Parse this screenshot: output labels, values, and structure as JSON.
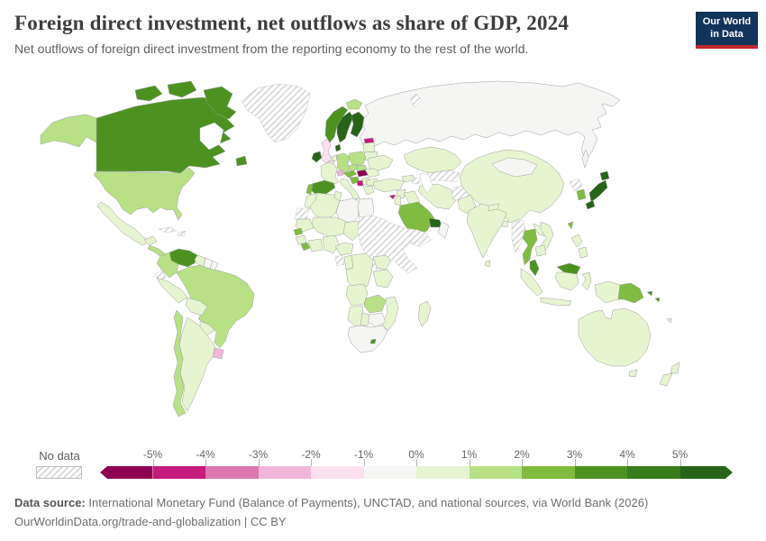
{
  "header": {
    "title": "Foreign direct investment, net outflows as share of GDP, 2024",
    "subtitle": "Net outflows of foreign direct investment from the reporting economy to the rest of the world.",
    "logo": {
      "line1": "Our World",
      "line2": "in Data"
    }
  },
  "legend": {
    "no_data_label": "No data",
    "ticks": [
      "-5%",
      "-4%",
      "-3%",
      "-2%",
      "-1%",
      "0%",
      "1%",
      "2%",
      "3%",
      "4%",
      "5%"
    ],
    "segments": [
      {
        "range": "< -5%",
        "color": "#8e0152"
      },
      {
        "range": "-5% to -4%",
        "color": "#c51b7d"
      },
      {
        "range": "-4% to -3%",
        "color": "#de77ae"
      },
      {
        "range": "-3% to -2%",
        "color": "#f1b6da"
      },
      {
        "range": "-2% to -1%",
        "color": "#fde0ef"
      },
      {
        "range": "-1% to 0%",
        "color": "#f5f5f3"
      },
      {
        "range": "0% to 1%",
        "color": "#e6f5d0"
      },
      {
        "range": "1% to 2%",
        "color": "#b8e186"
      },
      {
        "range": "2% to 3%",
        "color": "#7fbc41"
      },
      {
        "range": "3% to 4%",
        "color": "#4d9221"
      },
      {
        "range": "4% to 5%",
        "color": "#3a7d1c"
      },
      {
        "range": "> 5%",
        "color": "#276419"
      }
    ]
  },
  "footer": {
    "datasource_label": "Data source:",
    "datasource_text": " International Monetary Fund (Balance of Payments), UNCTAD, and national sources, via World Bank (2026)",
    "url_text": "OurWorldinData.org/trade-and-globalization",
    "separator": " | ",
    "license": "CC BY"
  },
  "chart_data": {
    "type": "choropleth_map",
    "title": "Foreign direct investment, net outflows as share of GDP, 2024",
    "unit": "% of GDP",
    "no_data_style": "diagonal-hatch",
    "regions": {
      "canada": {
        "label": "Canada",
        "band": "3% to 4%",
        "color": "#4d9221"
      },
      "united-states": {
        "label": "United States",
        "band": "1% to 2%",
        "color": "#b8e186"
      },
      "greenland": {
        "label": "Greenland",
        "band": "No data",
        "color": "hatch"
      },
      "iceland": {
        "label": "Iceland",
        "band": "1% to 2%",
        "color": "#b8e186"
      },
      "mexico": {
        "label": "Mexico",
        "band": "0% to 1%",
        "color": "#e6f5d0"
      },
      "central-america": {
        "label": "Central America",
        "band": "1% to 2%",
        "color": "#b8e186"
      },
      "cuba": {
        "label": "Cuba",
        "band": "No data",
        "color": "hatch"
      },
      "hispaniola": {
        "label": "Haiti/Dominican Rep.",
        "band": "No data",
        "color": "hatch"
      },
      "venezuela": {
        "label": "Venezuela",
        "band": "3% to 4%",
        "color": "#4d9221"
      },
      "colombia": {
        "label": "Colombia",
        "band": "1% to 2%",
        "color": "#b8e186"
      },
      "guyana": {
        "label": "Guyana",
        "band": "0% to 1%",
        "color": "#e6f5d0"
      },
      "suriname": {
        "label": "Suriname",
        "band": "-1% to 0%",
        "color": "#f5f5f3"
      },
      "french-guiana": {
        "label": "French Guiana",
        "band": "-1% to 0%",
        "color": "#f5f5f3"
      },
      "brazil": {
        "label": "Brazil",
        "band": "1% to 2%",
        "color": "#b8e186"
      },
      "ecuador": {
        "label": "Ecuador",
        "band": "No data",
        "color": "hatch"
      },
      "peru": {
        "label": "Peru",
        "band": "0% to 1%",
        "color": "#e6f5d0"
      },
      "bolivia": {
        "label": "Bolivia",
        "band": "0% to 1%",
        "color": "#e6f5d0"
      },
      "paraguay": {
        "label": "Paraguay",
        "band": "0% to 1%",
        "color": "#e6f5d0"
      },
      "uruguay": {
        "label": "Uruguay",
        "band": "-3% to -2%",
        "color": "#f1b6da"
      },
      "argentina": {
        "label": "Argentina",
        "band": "0% to 1%",
        "color": "#e6f5d0"
      },
      "chile": {
        "label": "Chile",
        "band": "1% to 2%",
        "color": "#b8e186"
      },
      "united-kingdom": {
        "label": "United Kingdom",
        "band": "-2% to -1%",
        "color": "#fde0ef"
      },
      "ireland": {
        "label": "Ireland",
        "band": "> 5%",
        "color": "#276419"
      },
      "norway": {
        "label": "Norway",
        "band": "3% to 4%",
        "color": "#4d9221"
      },
      "sweden": {
        "label": "Sweden",
        "band": "> 5%",
        "color": "#276419"
      },
      "finland": {
        "label": "Finland",
        "band": "> 5%",
        "color": "#276419"
      },
      "denmark": {
        "label": "Denmark",
        "band": "> 5%",
        "color": "#276419"
      },
      "estonia": {
        "label": "Estonia",
        "band": "-5% to -4%",
        "color": "#c51b7d"
      },
      "baltics": {
        "label": "Latvia/Lithuania",
        "band": "0% to 1%",
        "color": "#e6f5d0"
      },
      "belarus": {
        "label": "Belarus",
        "band": "0% to 1%",
        "color": "#e6f5d0"
      },
      "netherlands": {
        "label": "Netherlands",
        "band": "0% to 1%",
        "color": "#e6f5d0"
      },
      "belgium": {
        "label": "Belgium",
        "band": "-2% to -1%",
        "color": "#fde0ef"
      },
      "germany": {
        "label": "Germany",
        "band": "1% to 2%",
        "color": "#b8e186"
      },
      "poland": {
        "label": "Poland",
        "band": "1% to 2%",
        "color": "#b8e186"
      },
      "czechia": {
        "label": "Czechia",
        "band": "1% to 2%",
        "color": "#b8e186"
      },
      "slovakia": {
        "label": "Slovakia",
        "band": "1% to 2%",
        "color": "#b8e186"
      },
      "austria": {
        "label": "Austria",
        "band": "2% to 3%",
        "color": "#7fbc41"
      },
      "switzerland": {
        "label": "Switzerland",
        "band": "-3% to -2%",
        "color": "#f1b6da"
      },
      "france": {
        "label": "France",
        "band": "0% to 1%",
        "color": "#e6f5d0"
      },
      "spain": {
        "label": "Spain",
        "band": "3% to 4%",
        "color": "#4d9221"
      },
      "portugal": {
        "label": "Portugal",
        "band": "2% to 3%",
        "color": "#7fbc41"
      },
      "italy": {
        "label": "Italy",
        "band": "0% to 1%",
        "color": "#e6f5d0"
      },
      "hungary": {
        "label": "Hungary",
        "band": "< -5%",
        "color": "#8e0152"
      },
      "croatia": {
        "label": "Croatia",
        "band": "2% to 3%",
        "color": "#7fbc41"
      },
      "bosnia": {
        "label": "Bosnia region",
        "band": "-5% to -4%",
        "color": "#c51b7d"
      },
      "serbia": {
        "label": "Serbia",
        "band": "0% to 1%",
        "color": "#e6f5d0"
      },
      "romania": {
        "label": "Romania",
        "band": "0% to 1%",
        "color": "#e6f5d0"
      },
      "bulgaria": {
        "label": "Bulgaria",
        "band": "0% to 1%",
        "color": "#e6f5d0"
      },
      "greece": {
        "label": "Greece",
        "band": "0% to 1%",
        "color": "#e6f5d0"
      },
      "ukraine": {
        "label": "Ukraine",
        "band": "0% to 1%",
        "color": "#e6f5d0"
      },
      "russia": {
        "label": "Russia",
        "band": "-1% to 0%",
        "color": "#f5f5f3"
      },
      "novaya-zemlya": {
        "label": "Novaya Zemlya",
        "band": "No data",
        "color": "hatch"
      },
      "kazakhstan": {
        "label": "Kazakhstan",
        "band": "0% to 1%",
        "color": "#e6f5d0"
      },
      "central-asia": {
        "label": "Turkmenistan/Uzbekistan",
        "band": "No data",
        "color": "hatch"
      },
      "mongolia": {
        "label": "Mongolia",
        "band": "-1% to 0%",
        "color": "#f5f5f3"
      },
      "china": {
        "label": "China",
        "band": "0% to 1%",
        "color": "#e6f5d0"
      },
      "india": {
        "label": "India",
        "band": "0% to 1%",
        "color": "#e6f5d0"
      },
      "nepal": {
        "label": "Nepal",
        "band": "0% to 1%",
        "color": "#e6f5d0"
      },
      "bangladesh": {
        "label": "Bangladesh",
        "band": "0% to 1%",
        "color": "#e6f5d0"
      },
      "sri-lanka": {
        "label": "Sri Lanka",
        "band": "0% to 1%",
        "color": "#e6f5d0"
      },
      "pakistan": {
        "label": "Pakistan",
        "band": "0% to 1%",
        "color": "#e6f5d0"
      },
      "afghanistan": {
        "label": "Afghanistan",
        "band": "No data",
        "color": "hatch"
      },
      "iran": {
        "label": "Iran",
        "band": "0% to 1%",
        "color": "#e6f5d0"
      },
      "iraq": {
        "label": "Iraq",
        "band": "0% to 1%",
        "color": "#e6f5d0"
      },
      "syria": {
        "label": "Syria",
        "band": "0% to 1%",
        "color": "#e6f5d0"
      },
      "jordan": {
        "label": "Jordan/Israel",
        "band": "0% to 1%",
        "color": "#e6f5d0"
      },
      "turkey": {
        "label": "Turkey",
        "band": "0% to 1%",
        "color": "#e6f5d0"
      },
      "georgia": {
        "label": "Georgia",
        "band": "0% to 1%",
        "color": "#e6f5d0"
      },
      "azerbaijan": {
        "label": "Azerbaijan",
        "band": "No data",
        "color": "hatch"
      },
      "cyprus": {
        "label": "Cyprus",
        "band": "-5% to -4%",
        "color": "#c51b7d"
      },
      "saudi-arabia": {
        "label": "Saudi Arabia",
        "band": "2% to 3%",
        "color": "#7fbc41"
      },
      "uae-qatar": {
        "label": "UAE/Qatar",
        "band": "> 5%",
        "color": "#276419"
      },
      "oman": {
        "label": "Oman",
        "band": "-1% to 0%",
        "color": "#f5f5f3"
      },
      "yemen": {
        "label": "Yemen",
        "band": "No data",
        "color": "hatch"
      },
      "egypt": {
        "label": "Egypt",
        "band": "-1% to 0%",
        "color": "#f5f5f3"
      },
      "libya": {
        "label": "Libya",
        "band": "-1% to 0%",
        "color": "#f5f5f3"
      },
      "tunisia": {
        "label": "Tunisia",
        "band": "0% to 1%",
        "color": "#e6f5d0"
      },
      "algeria": {
        "label": "Algeria",
        "band": "0% to 1%",
        "color": "#e6f5d0"
      },
      "morocco": {
        "label": "Morocco",
        "band": "0% to 1%",
        "color": "#e6f5d0"
      },
      "western-sahara": {
        "label": "Western Sahara",
        "band": "No data",
        "color": "hatch"
      },
      "mauritania": {
        "label": "Mauritania",
        "band": "0% to 1%",
        "color": "#e6f5d0"
      },
      "mali-niger": {
        "label": "Mali/Niger",
        "band": "0% to 1%",
        "color": "#e6f5d0"
      },
      "senegal": {
        "label": "Senegal",
        "band": "2% to 3%",
        "color": "#7fbc41"
      },
      "guinea": {
        "label": "Guinea",
        "band": "0% to 1%",
        "color": "#e6f5d0"
      },
      "liberia": {
        "label": "Liberia",
        "band": "2% to 3%",
        "color": "#7fbc41"
      },
      "ivory-ghana": {
        "label": "Côte d'Ivoire/Ghana",
        "band": "0% to 1%",
        "color": "#e6f5d0"
      },
      "nigeria": {
        "label": "Nigeria",
        "band": "0% to 1%",
        "color": "#e6f5d0"
      },
      "chad": {
        "label": "Chad",
        "band": "0% to 1%",
        "color": "#e6f5d0"
      },
      "sudan-horn": {
        "label": "Sudan/Ethiopia/Somalia",
        "band": "No data",
        "color": "hatch"
      },
      "cameroon-car": {
        "label": "Cameroon/CAR",
        "band": "0% to 1%",
        "color": "#e6f5d0"
      },
      "gabon": {
        "label": "Gabon/Eq. Guinea",
        "band": "No data",
        "color": "hatch"
      },
      "congo": {
        "label": "Congo",
        "band": "0% to 1%",
        "color": "#e6f5d0"
      },
      "drc": {
        "label": "Dem. Rep. Congo",
        "band": "0% to 1%",
        "color": "#e6f5d0"
      },
      "uganda-kenya": {
        "label": "Uganda/Kenya",
        "band": "0% to 1%",
        "color": "#e6f5d0"
      },
      "tanzania": {
        "label": "Tanzania",
        "band": "0% to 1%",
        "color": "#e6f5d0"
      },
      "angola": {
        "label": "Angola",
        "band": "0% to 1%",
        "color": "#e6f5d0"
      },
      "zambia": {
        "label": "Zambia",
        "band": "1% to 2%",
        "color": "#b8e186"
      },
      "malawi-mozambique": {
        "label": "Malawi/Mozambique",
        "band": "0% to 1%",
        "color": "#e6f5d0"
      },
      "zimbabwe": {
        "label": "Zimbabwe",
        "band": "-1% to 0%",
        "color": "#f5f5f3"
      },
      "namibia": {
        "label": "Namibia",
        "band": "0% to 1%",
        "color": "#e6f5d0"
      },
      "botswana": {
        "label": "Botswana",
        "band": "0% to 1%",
        "color": "#e6f5d0"
      },
      "south-africa": {
        "label": "South Africa",
        "band": "-1% to 0%",
        "color": "#f5f5f3"
      },
      "lesotho": {
        "label": "Lesotho",
        "band": "3% to 4%",
        "color": "#4d9221"
      },
      "madagascar": {
        "label": "Madagascar",
        "band": "0% to 1%",
        "color": "#e6f5d0"
      },
      "myanmar": {
        "label": "Myanmar",
        "band": "No data",
        "color": "hatch"
      },
      "thailand": {
        "label": "Thailand",
        "band": "2% to 3%",
        "color": "#7fbc41"
      },
      "laos": {
        "label": "Laos",
        "band": "0% to 1%",
        "color": "#e6f5d0"
      },
      "vietnam": {
        "label": "Vietnam",
        "band": "0% to 1%",
        "color": "#e6f5d0"
      },
      "cambodia": {
        "label": "Cambodia",
        "band": "0% to 1%",
        "color": "#e6f5d0"
      },
      "malaysia": {
        "label": "Malaysia",
        "band": "3% to 4%",
        "color": "#4d9221"
      },
      "indonesia": {
        "label": "Indonesia",
        "band": "0% to 1%",
        "color": "#e6f5d0"
      },
      "philippines": {
        "label": "Philippines",
        "band": "0% to 1%",
        "color": "#e6f5d0"
      },
      "taiwan": {
        "label": "Taiwan",
        "band": "2% to 3%",
        "color": "#7fbc41"
      },
      "north-korea": {
        "label": "North Korea",
        "band": "No data",
        "color": "hatch"
      },
      "south-korea": {
        "label": "South Korea",
        "band": "2% to 3%",
        "color": "#7fbc41"
      },
      "japan": {
        "label": "Japan",
        "band": "> 5%",
        "color": "#276419"
      },
      "papua-new-guinea": {
        "label": "Papua New Guinea",
        "band": "2% to 3%",
        "color": "#7fbc41"
      },
      "solomon-islands": {
        "label": "Solomon Islands",
        "band": "3% to 4%",
        "color": "#4d9221"
      },
      "australia": {
        "label": "Australia",
        "band": "0% to 1%",
        "color": "#e6f5d0"
      },
      "new-zealand": {
        "label": "New Zealand",
        "band": "0% to 1%",
        "color": "#e6f5d0"
      },
      "fiji": {
        "label": "Fiji",
        "band": "0% to 1%",
        "color": "#e6f5d0"
      }
    }
  }
}
